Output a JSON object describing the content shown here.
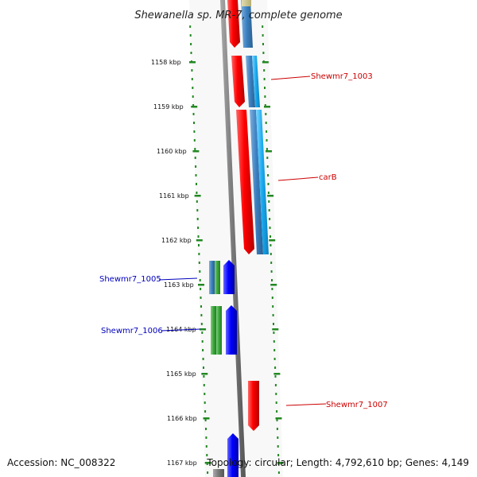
{
  "title": "Shewanella sp. MR-7, complete genome",
  "ticks": [
    "1158 kbp",
    "1159 kbp",
    "1160 kbp",
    "1161 kbp",
    "1162 kbp",
    "1163 kbp",
    "1164 kbp",
    "1165 kbp",
    "1166 kbp",
    "1167 kbp"
  ],
  "gene_labels": [
    {
      "name": "Shewmr7_1003",
      "strand": "forward",
      "color": "#cc0000"
    },
    {
      "name": "carB",
      "strand": "forward",
      "color": "#cc0000"
    },
    {
      "name": "Shewmr7_1005",
      "strand": "reverse",
      "color": "#0000bb"
    },
    {
      "name": "Shewmr7_1006",
      "strand": "reverse",
      "color": "#0000bb"
    },
    {
      "name": "Shewmr7_1007",
      "strand": "forward",
      "color": "#cc0000"
    }
  ],
  "colors": {
    "forward_gene": "#ff0000",
    "reverse_gene": "#0000ff",
    "forward_feature": "#3a7fc0",
    "forward_feature_alt": "#1aa9ee",
    "reverse_feature": "#3aa63a",
    "tick_color": "#228822",
    "backbone": "#777777"
  },
  "footer": {
    "accession": "Accession: NC_008322",
    "summary": "Topology: circular; Length: 4,792,610 bp; Genes: 4,149"
  }
}
